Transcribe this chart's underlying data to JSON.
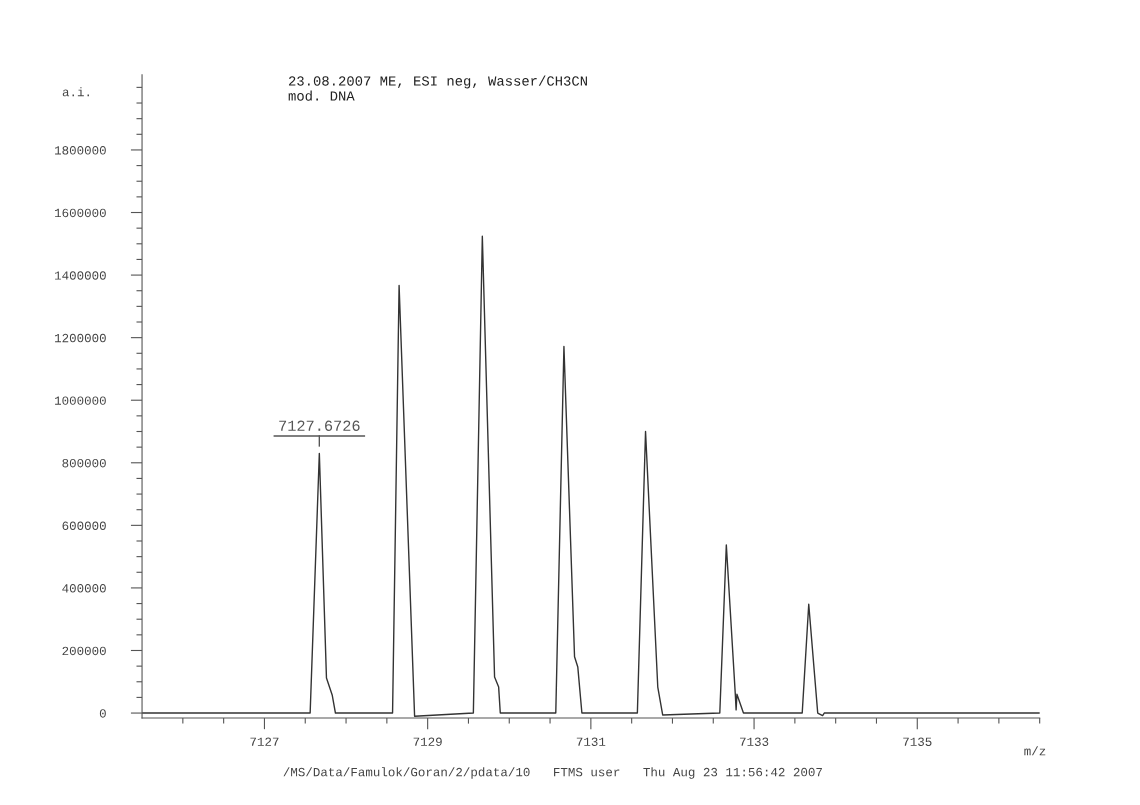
{
  "chart_data": {
    "type": "line",
    "title": "23.08.2007 ME, ESI neg, Wasser/CH3CN",
    "subtitle": "mod. DNA",
    "xlabel": "m/z",
    "ylabel": "a.i.",
    "series": [
      {
        "color": "#333333",
        "x": [
          7125.5,
          7127.56,
          7127.6726,
          7127.76,
          7127.83,
          7127.87,
          7128.57,
          7128.65,
          7128.84,
          7129.56,
          7129.67,
          7129.82,
          7129.87,
          7129.89,
          7130.57,
          7130.67,
          7130.8,
          7130.84,
          7130.89,
          7131.57,
          7131.67,
          7131.82,
          7131.88,
          7132.58,
          7132.66,
          7132.77,
          7132.78,
          7132.79,
          7132.87,
          7133.59,
          7133.67,
          7133.78,
          7133.84,
          7133.86,
          7136.5
        ],
        "values": [
          0,
          0,
          830000,
          112000,
          58000,
          0,
          0,
          1367000,
          -10000,
          0,
          1524000,
          115000,
          83000,
          0,
          0,
          1172000,
          180000,
          147000,
          0,
          0,
          900000,
          83000,
          -6000,
          0,
          537000,
          60000,
          10000,
          60000,
          0,
          0,
          348000,
          0,
          -8000,
          0,
          0
        ]
      }
    ],
    "xlim": [
      7125.5,
      7136.5
    ],
    "xticks": [
      {
        "value": 7126,
        "label": null
      },
      {
        "value": 7126.5,
        "label": null
      },
      7127,
      {
        "value": 7127.5,
        "label": null
      },
      {
        "value": 7128,
        "label": null
      },
      {
        "value": 7128.5,
        "label": null
      },
      7129,
      {
        "value": 7129.5,
        "label": null
      },
      {
        "value": 7130,
        "label": null
      },
      {
        "value": 7130.5,
        "label": null
      },
      7131,
      {
        "value": 7131.5,
        "label": null
      },
      {
        "value": 7132,
        "label": null
      },
      {
        "value": 7132.5,
        "label": null
      },
      7133,
      {
        "value": 7133.5,
        "label": null
      },
      {
        "value": 7134,
        "label": null
      },
      {
        "value": 7134.5,
        "label": null
      },
      7135,
      {
        "value": 7135.5,
        "label": null
      },
      {
        "value": 7136,
        "label": null
      },
      {
        "value": 7136.5,
        "label": null
      }
    ],
    "ylim": [
      -16000,
      2040000
    ],
    "yticks": [
      0,
      {
        "value": 50000,
        "label": null
      },
      {
        "value": 100000,
        "label": null
      },
      {
        "value": 150000,
        "label": null
      },
      200000,
      {
        "value": 250000,
        "label": null
      },
      {
        "value": 300000,
        "label": null
      },
      {
        "value": 350000,
        "label": null
      },
      400000,
      {
        "value": 450000,
        "label": null
      },
      {
        "value": 500000,
        "label": null
      },
      {
        "value": 550000,
        "label": null
      },
      600000,
      {
        "value": 650000,
        "label": null
      },
      {
        "value": 700000,
        "label": null
      },
      {
        "value": 750000,
        "label": null
      },
      800000,
      {
        "value": 850000,
        "label": null
      },
      {
        "value": 900000,
        "label": null
      },
      {
        "value": 950000,
        "label": null
      },
      1000000,
      {
        "value": 1050000,
        "label": null
      },
      {
        "value": 1100000,
        "label": null
      },
      {
        "value": 1150000,
        "label": null
      },
      1200000,
      {
        "value": 1250000,
        "label": null
      },
      {
        "value": 1300000,
        "label": null
      },
      {
        "value": 1350000,
        "label": null
      },
      1400000,
      {
        "value": 1450000,
        "label": null
      },
      {
        "value": 1500000,
        "label": null
      },
      {
        "value": 1550000,
        "label": null
      },
      1600000,
      {
        "value": 1650000,
        "label": null
      },
      {
        "value": 1700000,
        "label": null
      },
      {
        "value": 1750000,
        "label": null
      },
      1800000,
      {
        "value": 1850000,
        "label": null
      },
      {
        "value": 1900000,
        "label": null
      },
      {
        "value": 1950000,
        "label": null
      },
      {
        "value": 2000000,
        "label": null
      }
    ],
    "grid": false,
    "marker": "none",
    "line_style": "solid",
    "annotations": [
      {
        "text": "7127.6726",
        "x": 7127.6726,
        "y": 830000
      },
      "/MS/Data/Famulok/Goran/2/pdata/10   FTMS user   Thu Aug 23 11:56:42 2007"
    ]
  }
}
